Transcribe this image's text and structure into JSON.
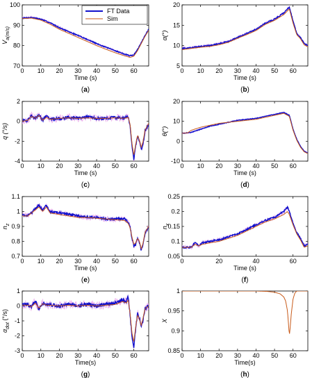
{
  "chart_data": [
    {
      "type": "line",
      "panel": "(a)",
      "panel_letter": "a",
      "ylabel": "V_a(m/s)",
      "xlabel": "Time (s)",
      "xlim": [
        0,
        68
      ],
      "ylim": [
        70,
        100
      ],
      "xticks": [
        0,
        10,
        20,
        30,
        40,
        50,
        60
      ],
      "yticks": [
        70,
        80,
        90,
        100
      ],
      "legend": {
        "placement": "top-right"
      },
      "series": [
        {
          "name": "FT Data",
          "color": "#1010cc",
          "noise": 0.25,
          "x": [
            0,
            5,
            10,
            15,
            20,
            25,
            30,
            35,
            40,
            45,
            50,
            55,
            58,
            60,
            62,
            64,
            66,
            68
          ],
          "y": [
            93.5,
            93.8,
            93.0,
            91.2,
            88.8,
            86.8,
            85.0,
            83.0,
            81.0,
            79.2,
            77.5,
            75.8,
            75.0,
            75.5,
            78.0,
            81.5,
            85.0,
            88.0
          ]
        },
        {
          "name": "Sim",
          "color": "#c85a19",
          "x": [
            0,
            5,
            10,
            15,
            20,
            25,
            30,
            35,
            40,
            45,
            50,
            55,
            58,
            60,
            62,
            64,
            66,
            68
          ],
          "y": [
            93.3,
            93.5,
            92.5,
            90.5,
            88.0,
            86.0,
            84.0,
            82.0,
            80.0,
            78.2,
            76.5,
            75.0,
            74.2,
            74.8,
            77.5,
            81.0,
            84.5,
            87.5
          ]
        }
      ]
    },
    {
      "type": "line",
      "panel": "(b)",
      "panel_letter": "b",
      "ylabel": "α(°)",
      "xlabel": "Time (s)",
      "xlim": [
        0,
        68
      ],
      "ylim": [
        5,
        20
      ],
      "xticks": [
        0,
        10,
        20,
        30,
        40,
        50,
        60
      ],
      "yticks": [
        5,
        10,
        15,
        20
      ],
      "series": [
        {
          "name": "FT Data",
          "color": "#1010cc",
          "noise": 0.15,
          "x": [
            0,
            5,
            10,
            15,
            20,
            25,
            30,
            35,
            40,
            45,
            50,
            55,
            58,
            60,
            62,
            64,
            66,
            68
          ],
          "y": [
            9.3,
            9.5,
            9.8,
            10.0,
            10.5,
            11.0,
            12.0,
            13.0,
            14.0,
            15.5,
            16.5,
            18.0,
            19.5,
            16.0,
            13.0,
            12.0,
            10.5,
            10.0
          ]
        },
        {
          "name": "Sim",
          "color": "#c85a19",
          "x": [
            0,
            5,
            10,
            15,
            20,
            25,
            30,
            35,
            40,
            45,
            50,
            55,
            58,
            60,
            62,
            64,
            66,
            68
          ],
          "y": [
            9.0,
            9.3,
            9.6,
            9.8,
            10.2,
            10.8,
            11.8,
            12.7,
            13.7,
            15.2,
            16.2,
            17.6,
            19.0,
            15.5,
            12.7,
            11.7,
            10.2,
            9.7
          ]
        }
      ]
    },
    {
      "type": "line",
      "panel": "(c)",
      "panel_letter": "c",
      "ylabel": "q (°/s)",
      "xlabel": "Time (s)",
      "xlim": [
        0,
        68
      ],
      "ylim": [
        -4,
        2
      ],
      "xticks": [
        0,
        10,
        20,
        30,
        40,
        50,
        60
      ],
      "yticks": [
        -4,
        -2,
        0,
        2
      ],
      "series": [
        {
          "name": "FT Data",
          "color": "#1010cc",
          "noise": 0.15,
          "x": [
            0,
            3,
            5,
            7,
            9,
            11,
            13,
            15,
            20,
            25,
            30,
            35,
            40,
            45,
            50,
            55,
            57,
            58,
            59,
            60,
            61,
            62,
            63,
            64,
            65,
            66,
            68
          ],
          "y": [
            0,
            0.1,
            0.6,
            0.3,
            0.7,
            0.1,
            0.5,
            0.2,
            0.3,
            0.4,
            0.3,
            0.4,
            0.3,
            0.3,
            0.4,
            0.3,
            0.5,
            -0.5,
            -2.5,
            -3.8,
            -2.5,
            -1.5,
            -2.0,
            -2.8,
            -2.2,
            -1.0,
            -0.3
          ]
        },
        {
          "name": "Sim",
          "color": "#c85a19",
          "x": [
            0,
            3,
            5,
            7,
            9,
            11,
            13,
            15,
            20,
            25,
            30,
            35,
            40,
            45,
            50,
            55,
            57,
            58,
            59,
            60,
            61,
            62,
            63,
            64,
            65,
            66,
            68
          ],
          "y": [
            0,
            0.1,
            0.5,
            0.3,
            0.6,
            0.1,
            0.4,
            0.2,
            0.3,
            0.35,
            0.3,
            0.35,
            0.3,
            0.3,
            0.35,
            0.3,
            0.4,
            -0.3,
            -2.2,
            -3.4,
            -2.3,
            -1.4,
            -1.9,
            -2.6,
            -2.0,
            -0.9,
            -0.2
          ]
        }
      ]
    },
    {
      "type": "line",
      "panel": "(d)",
      "panel_letter": "d",
      "ylabel": "θ(°)",
      "xlabel": "Time (s)",
      "xlim": [
        0,
        68
      ],
      "ylim": [
        -10,
        20
      ],
      "xticks": [
        0,
        10,
        20,
        30,
        40,
        50,
        60
      ],
      "yticks": [
        -10,
        0,
        10,
        20
      ],
      "series": [
        {
          "name": "FT Data",
          "color": "#1010cc",
          "noise": 0.15,
          "x": [
            0,
            3,
            5,
            10,
            15,
            20,
            25,
            30,
            35,
            40,
            45,
            50,
            55,
            58,
            60,
            62,
            64,
            66,
            68
          ],
          "y": [
            4,
            4.2,
            4.5,
            6,
            7.5,
            8.5,
            9.5,
            10.5,
            11,
            11.5,
            12.5,
            13.5,
            14.5,
            13,
            6,
            1,
            -2.5,
            -5,
            -6
          ]
        },
        {
          "name": "Sim",
          "color": "#c85a19",
          "x": [
            0,
            3,
            5,
            10,
            15,
            20,
            25,
            30,
            35,
            40,
            45,
            50,
            55,
            58,
            60,
            62,
            64,
            66,
            68
          ],
          "y": [
            4,
            4.2,
            5.5,
            7,
            8,
            9,
            9.5,
            10,
            10.5,
            11,
            12,
            13,
            14,
            12.5,
            5.5,
            0.5,
            -3,
            -5.3,
            -6.2
          ]
        }
      ]
    },
    {
      "type": "line",
      "panel": "(e)",
      "panel_letter": "e",
      "ylabel": "n_z",
      "xlabel": "Time (s)",
      "xlim": [
        0,
        68
      ],
      "ylim": [
        0.7,
        1.1
      ],
      "xticks": [
        0,
        10,
        20,
        30,
        40,
        50,
        60
      ],
      "yticks": [
        0.7,
        0.8,
        0.9,
        1,
        1.1
      ],
      "series": [
        {
          "name": "FT Data",
          "color": "#1010cc",
          "noise": 0.008,
          "x": [
            0,
            3,
            5,
            7,
            9,
            11,
            13,
            15,
            20,
            25,
            30,
            35,
            40,
            45,
            50,
            55,
            57,
            58,
            59,
            60,
            61,
            62,
            63,
            64,
            65,
            66,
            68
          ],
          "y": [
            0.98,
            0.97,
            0.99,
            1.02,
            1.04,
            1.01,
            1.04,
            1.0,
            0.99,
            0.98,
            0.97,
            0.96,
            0.96,
            0.95,
            0.95,
            0.95,
            0.93,
            0.9,
            0.82,
            0.77,
            0.78,
            0.82,
            0.79,
            0.74,
            0.78,
            0.85,
            0.9
          ]
        },
        {
          "name": "Sim",
          "color": "#c85a19",
          "x": [
            0,
            3,
            5,
            7,
            9,
            11,
            13,
            15,
            20,
            25,
            30,
            35,
            40,
            45,
            50,
            55,
            57,
            58,
            59,
            60,
            61,
            62,
            63,
            64,
            65,
            66,
            68
          ],
          "y": [
            0.97,
            0.97,
            0.99,
            1.01,
            1.03,
            1.0,
            1.03,
            0.99,
            0.98,
            0.97,
            0.96,
            0.96,
            0.955,
            0.95,
            0.945,
            0.94,
            0.92,
            0.89,
            0.83,
            0.78,
            0.79,
            0.82,
            0.8,
            0.75,
            0.79,
            0.86,
            0.9
          ]
        }
      ]
    },
    {
      "type": "line",
      "panel": "(f)",
      "panel_letter": "f",
      "ylabel": "n_x",
      "xlabel": "Time (s)",
      "xlim": [
        0,
        68
      ],
      "ylim": [
        0.05,
        0.25
      ],
      "xticks": [
        0,
        20,
        40,
        60
      ],
      "yticks": [
        0.05,
        0.1,
        0.15,
        0.2,
        0.25
      ],
      "series": [
        {
          "name": "FT Data",
          "color": "#1010cc",
          "noise": 0.003,
          "x": [
            0,
            5,
            7,
            9,
            11,
            15,
            20,
            25,
            30,
            35,
            40,
            45,
            50,
            55,
            57,
            58,
            60,
            62,
            64,
            66,
            68
          ],
          "y": [
            0.08,
            0.08,
            0.095,
            0.085,
            0.095,
            0.1,
            0.105,
            0.115,
            0.125,
            0.14,
            0.155,
            0.17,
            0.18,
            0.2,
            0.215,
            0.2,
            0.16,
            0.13,
            0.11,
            0.085,
            0.09
          ]
        },
        {
          "name": "Sim",
          "color": "#c85a19",
          "x": [
            0,
            5,
            7,
            9,
            11,
            15,
            20,
            25,
            30,
            35,
            40,
            45,
            50,
            55,
            57,
            58,
            60,
            62,
            64,
            66,
            68
          ],
          "y": [
            0.08,
            0.08,
            0.09,
            0.085,
            0.09,
            0.095,
            0.1,
            0.11,
            0.12,
            0.135,
            0.15,
            0.165,
            0.175,
            0.19,
            0.2,
            0.19,
            0.155,
            0.125,
            0.105,
            0.08,
            0.085
          ]
        }
      ]
    },
    {
      "type": "line",
      "panel": "(g)",
      "panel_letter": "g",
      "ylabel": "α_dot (°/s)",
      "xlabel": "Time(s)",
      "xlim": [
        0,
        68
      ],
      "ylim": [
        -3,
        1
      ],
      "xticks": [
        0,
        10,
        20,
        30,
        40,
        50,
        60
      ],
      "yticks": [
        -3,
        -2,
        -1,
        0,
        1
      ],
      "series": [
        {
          "name": "FT Data",
          "color": "#1010cc",
          "noise": 0.12,
          "x": [
            0,
            3,
            5,
            7,
            9,
            11,
            13,
            15,
            20,
            25,
            30,
            35,
            40,
            45,
            50,
            54,
            56,
            57,
            58,
            59,
            60,
            61,
            62,
            63,
            64,
            65,
            66,
            68
          ],
          "y": [
            0.1,
            0.1,
            -0.1,
            0.3,
            -0.2,
            0.2,
            0.1,
            0.1,
            0.0,
            0.1,
            0.0,
            0.1,
            0.0,
            0.1,
            0.2,
            0.4,
            0.3,
            0.6,
            -0.6,
            -2.0,
            -2.7,
            -1.5,
            -0.5,
            -0.8,
            -1.4,
            -0.9,
            -0.2,
            0.0
          ]
        },
        {
          "name": "Sim",
          "color": "#c85a19",
          "x": [
            0,
            3,
            5,
            7,
            9,
            11,
            13,
            15,
            20,
            25,
            30,
            35,
            40,
            45,
            50,
            54,
            56,
            57,
            58,
            59,
            60,
            61,
            62,
            63,
            64,
            65,
            66,
            68
          ],
          "y": [
            0.05,
            0.05,
            -0.05,
            0.2,
            -0.15,
            0.15,
            0.05,
            0.05,
            0.0,
            0.05,
            0.0,
            0.05,
            0.0,
            0.05,
            0.1,
            0.3,
            0.2,
            0.4,
            -0.5,
            -1.8,
            -2.4,
            -1.4,
            -0.6,
            -0.9,
            -1.3,
            -0.8,
            -0.2,
            0.0
          ]
        }
      ]
    },
    {
      "type": "line",
      "panel": "(h)",
      "panel_letter": "h",
      "ylabel": "X",
      "xlabel": "Time(s)",
      "xlim": [
        0,
        68
      ],
      "ylim": [
        0.85,
        1.0
      ],
      "xticks": [
        0,
        10,
        20,
        30,
        40,
        50,
        60
      ],
      "yticks": [
        0.85,
        0.9,
        0.95,
        1
      ],
      "series": [
        {
          "name": "Sim",
          "color": "#c85a19",
          "x": [
            0,
            40,
            46,
            50,
            53,
            55,
            56,
            57,
            57.5,
            58,
            58.5,
            59,
            60,
            61,
            62,
            68
          ],
          "y": [
            1.0,
            1.0,
            0.999,
            0.997,
            0.993,
            0.985,
            0.975,
            0.95,
            0.92,
            0.888,
            0.91,
            0.94,
            0.98,
            0.995,
            1.0,
            1.0
          ]
        }
      ]
    }
  ]
}
